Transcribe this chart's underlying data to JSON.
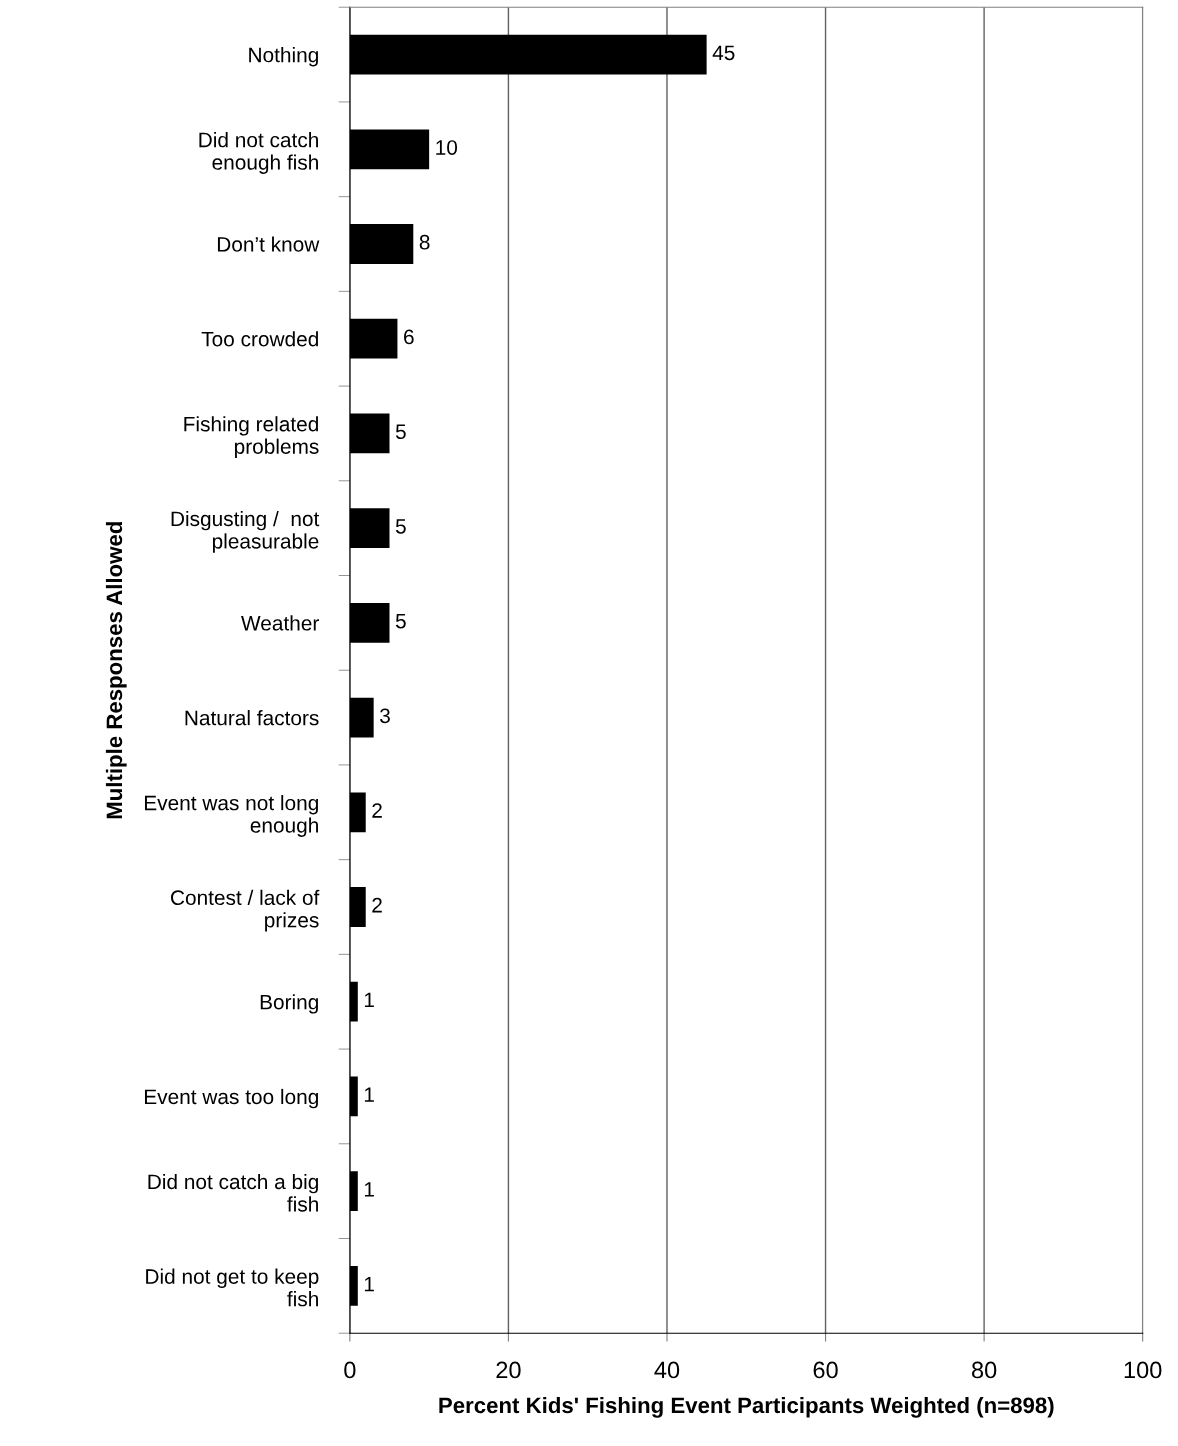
{
  "chart_data": {
    "type": "bar",
    "orientation": "horizontal",
    "categories": [
      "Nothing",
      "Did not catch\nenough fish",
      "Don’t know",
      "Too crowded",
      "Fishing related\nproblems",
      "Disgusting /  not\npleasurable",
      "Weather",
      "Natural factors",
      "Event was not long\nenough",
      "Contest / lack of\nprizes",
      "Boring",
      "Event was too long",
      "Did not catch a big\nfish",
      "Did not get to keep\nfish"
    ],
    "values": [
      45,
      10,
      8,
      6,
      5,
      5,
      5,
      3,
      2,
      2,
      1,
      1,
      1,
      1
    ],
    "color": "#000000",
    "xlim": [
      0,
      100
    ],
    "xticks": [
      0,
      20,
      40,
      60,
      80,
      100
    ],
    "xlabel": "Percent Kids' Fishing Event Participants Weighted (n=898)",
    "ylabel": "Multiple Responses Allowed",
    "grid": "x",
    "data_labels": true,
    "legend": false
  }
}
